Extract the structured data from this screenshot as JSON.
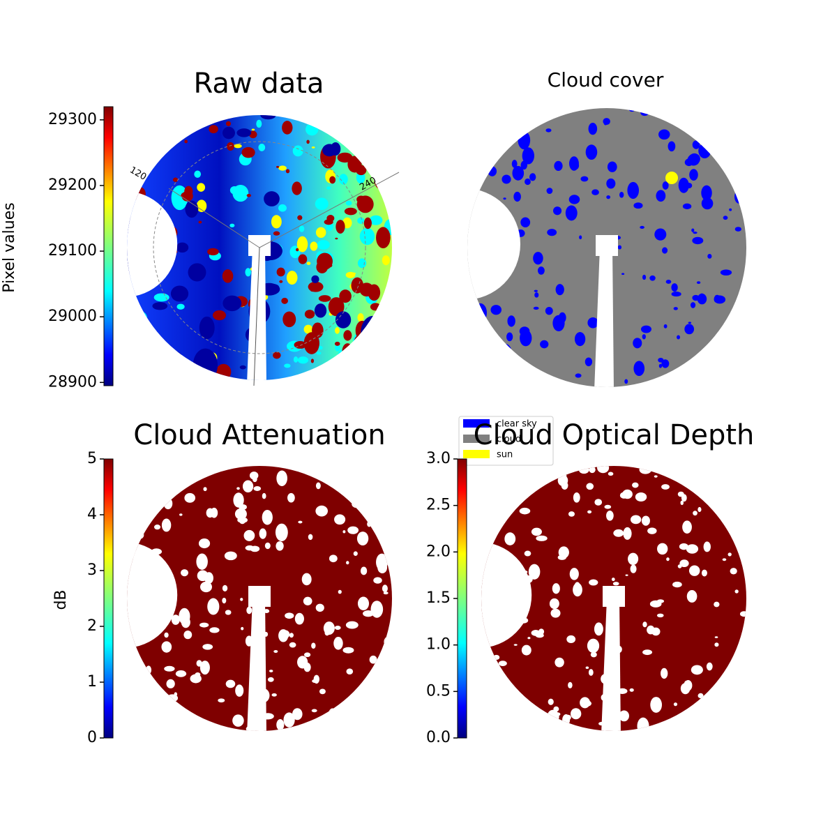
{
  "chart_data": [
    {
      "type": "image",
      "title": "Raw data",
      "colormap": "jet",
      "colorbar_label": "Pixel values",
      "ylim": [
        28895,
        29320
      ],
      "yticks": [
        28900,
        29000,
        29100,
        29200,
        29300
      ],
      "annotations": [
        "120",
        "240"
      ]
    },
    {
      "type": "classification",
      "title": "Cloud cover",
      "series": [
        {
          "name": "clear sky",
          "color": "#0000ff"
        },
        {
          "name": "cloud",
          "color": "#808080"
        },
        {
          "name": "sun",
          "color": "#ffff00"
        }
      ]
    },
    {
      "type": "image",
      "title": "Cloud Attenuation",
      "colormap": "jet",
      "colorbar_label": "dB",
      "color": "#7f0000",
      "ylim": [
        0,
        5
      ],
      "yticks": [
        0,
        1,
        2,
        3,
        4,
        5
      ]
    },
    {
      "type": "image",
      "title": "Cloud Optical Depth",
      "colormap": "jet",
      "color": "#7f0000",
      "ylim": [
        0,
        3
      ],
      "yticks": [
        {
          "value": 0,
          "label": "0.0"
        },
        {
          "value": 0.5,
          "label": "0.5"
        },
        {
          "value": 1,
          "label": "1.0"
        },
        {
          "value": 1.5,
          "label": "1.5"
        },
        {
          "value": 2,
          "label": "2.0"
        },
        {
          "value": 2.5,
          "label": "2.5"
        },
        {
          "value": 3,
          "label": "3.0"
        }
      ]
    }
  ]
}
